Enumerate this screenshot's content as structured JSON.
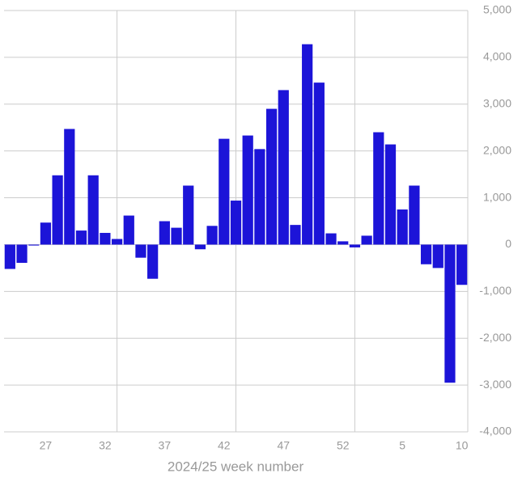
{
  "chart_data": {
    "type": "bar",
    "x_label": "2024/25 week number",
    "categories": [
      null,
      null,
      null,
      "27",
      null,
      null,
      null,
      null,
      "32",
      null,
      null,
      null,
      null,
      "37",
      null,
      null,
      null,
      null,
      "42",
      null,
      null,
      null,
      null,
      "47",
      null,
      null,
      null,
      null,
      "52",
      null,
      null,
      null,
      null,
      "5",
      null,
      null,
      null,
      null,
      "10"
    ],
    "values": [
      -520,
      -390,
      -20,
      470,
      1480,
      2470,
      300,
      1480,
      250,
      120,
      620,
      -280,
      -730,
      500,
      360,
      1260,
      -100,
      400,
      2260,
      940,
      2330,
      2040,
      2900,
      3300,
      420,
      4280,
      3460,
      240,
      70,
      -60,
      190,
      2400,
      2140,
      750,
      1260,
      -420,
      -500,
      -2950,
      -860
    ],
    "color": "#1c14d8",
    "ylim": [
      -4000,
      5000
    ],
    "yticks": [
      {
        "value": -4000,
        "label": "-4,000"
      },
      {
        "value": -3000,
        "label": "-3,000"
      },
      {
        "value": -2000,
        "label": "-2,000"
      },
      {
        "value": -1000,
        "label": "-1,000"
      },
      0,
      {
        "value": 1000,
        "label": "1,000"
      },
      {
        "value": 2000,
        "label": "2,000"
      },
      {
        "value": 3000,
        "label": "3,000"
      },
      {
        "value": 4000,
        "label": "4,000"
      },
      {
        "value": 5000,
        "label": "5,000"
      }
    ],
    "grid": true,
    "y_axis_side": "right"
  }
}
